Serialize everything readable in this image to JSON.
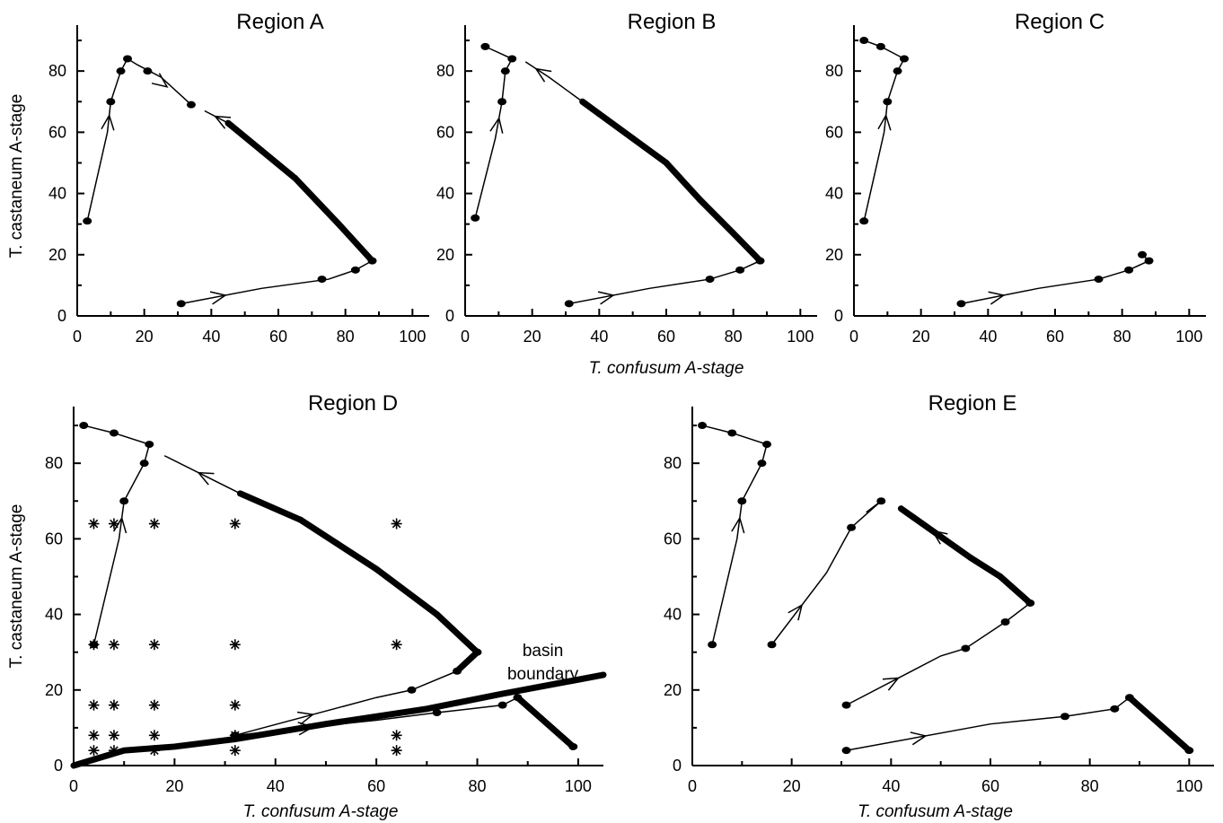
{
  "chart_data": [
    {
      "name": "region-a",
      "type": "line",
      "title": "Region A",
      "xlim": [
        0,
        105
      ],
      "ylim": [
        0,
        95
      ],
      "xticks": [
        0,
        20,
        40,
        60,
        80,
        100
      ],
      "yticks": [
        0,
        20,
        40,
        60,
        80
      ],
      "series": [
        {
          "points": [
            [
              3,
              31
            ],
            [
              9,
              60
            ],
            [
              10,
              70
            ],
            [
              13,
              80
            ],
            [
              15,
              84
            ],
            [
              18,
              82
            ],
            [
              25,
              78
            ],
            [
              34,
              69
            ]
          ],
          "dots": [
            [
              3,
              31
            ],
            [
              10,
              70
            ],
            [
              13,
              80
            ],
            [
              15,
              84
            ],
            [
              21,
              80
            ],
            [
              34,
              69
            ]
          ],
          "arrows": [
            [
              1,
              2
            ],
            [
              5,
              7
            ]
          ]
        },
        {
          "points": [
            [
              31,
              4
            ],
            [
              55,
              9
            ],
            [
              75,
              12
            ],
            [
              83,
              15
            ],
            [
              88,
              18
            ],
            [
              78,
              30
            ],
            [
              65,
              45
            ],
            [
              55,
              54
            ],
            [
              45,
              63
            ],
            [
              38,
              67
            ]
          ],
          "dots": [
            [
              31,
              4
            ],
            [
              73,
              12
            ],
            [
              83,
              15
            ],
            [
              88,
              18
            ]
          ],
          "arrows": [
            [
              0,
              1
            ],
            [
              8,
              9
            ]
          ],
          "thick": [
            4,
            5,
            6,
            7
          ]
        }
      ]
    },
    {
      "name": "region-b",
      "type": "line",
      "title": "Region B",
      "xlim": [
        0,
        105
      ],
      "ylim": [
        0,
        95
      ],
      "xticks": [
        0,
        20,
        40,
        60,
        80,
        100
      ],
      "yticks": [
        0,
        20,
        40,
        60,
        80
      ],
      "series": [
        {
          "points": [
            [
              3,
              32
            ],
            [
              9,
              58
            ],
            [
              11,
              70
            ],
            [
              12,
              80
            ],
            [
              14,
              84
            ],
            [
              6,
              88
            ]
          ],
          "dots": [
            [
              3,
              32
            ],
            [
              11,
              70
            ],
            [
              12,
              80
            ],
            [
              14,
              84
            ],
            [
              6,
              88
            ]
          ],
          "arrows": [
            [
              1,
              2
            ]
          ]
        },
        {
          "points": [
            [
              31,
              4
            ],
            [
              55,
              9
            ],
            [
              73,
              12
            ],
            [
              82,
              15
            ],
            [
              88,
              18
            ],
            [
              80,
              27
            ],
            [
              70,
              38
            ],
            [
              60,
              50
            ],
            [
              50,
              58
            ],
            [
              40,
              66
            ],
            [
              35,
              70
            ],
            [
              25,
              78
            ],
            [
              18,
              83
            ]
          ],
          "dots": [
            [
              31,
              4
            ],
            [
              73,
              12
            ],
            [
              82,
              15
            ],
            [
              88,
              18
            ]
          ],
          "arrows": [
            [
              0,
              1
            ],
            [
              11,
              12
            ]
          ],
          "thick": [
            4,
            5,
            6,
            7,
            8,
            9
          ]
        }
      ]
    },
    {
      "name": "region-c",
      "type": "line",
      "title": "Region C",
      "xlim": [
        0,
        105
      ],
      "ylim": [
        0,
        95
      ],
      "xticks": [
        0,
        20,
        40,
        60,
        80,
        100
      ],
      "yticks": [
        0,
        20,
        40,
        60,
        80
      ],
      "series": [
        {
          "points": [
            [
              3,
              31
            ],
            [
              9,
              60
            ],
            [
              10,
              70
            ],
            [
              13,
              80
            ],
            [
              15,
              84
            ],
            [
              8,
              88
            ],
            [
              3,
              90
            ]
          ],
          "dots": [
            [
              3,
              31
            ],
            [
              10,
              70
            ],
            [
              13,
              80
            ],
            [
              15,
              84
            ],
            [
              8,
              88
            ],
            [
              3,
              90
            ]
          ],
          "arrows": [
            [
              1,
              2
            ]
          ]
        },
        {
          "points": [
            [
              32,
              4
            ],
            [
              55,
              9
            ],
            [
              73,
              12
            ],
            [
              82,
              15
            ],
            [
              88,
              18
            ],
            [
              86,
              20
            ]
          ],
          "dots": [
            [
              32,
              4
            ],
            [
              73,
              12
            ],
            [
              82,
              15
            ],
            [
              88,
              18
            ],
            [
              86,
              20
            ]
          ],
          "arrows": [
            [
              0,
              1
            ]
          ]
        }
      ]
    },
    {
      "name": "region-d",
      "type": "line",
      "title": "Region D",
      "xlabel": "T. confusum A-stage",
      "ylabel": "T. castaneum A-stage",
      "annotation": {
        "lines": [
          "basin",
          "boundary"
        ],
        "at": [
          93,
          29
        ]
      },
      "xlim": [
        0,
        105
      ],
      "ylim": [
        0,
        95
      ],
      "xticks": [
        0,
        20,
        40,
        60,
        80,
        100
      ],
      "yticks": [
        0,
        20,
        40,
        60,
        80
      ],
      "series": [
        {
          "points": [
            [
              4,
              32
            ],
            [
              9,
              60
            ],
            [
              10,
              70
            ],
            [
              14,
              80
            ],
            [
              15,
              85
            ],
            [
              8,
              88
            ],
            [
              2,
              90
            ]
          ],
          "dots": [
            [
              4,
              32
            ],
            [
              10,
              70
            ],
            [
              14,
              80
            ],
            [
              15,
              85
            ],
            [
              8,
              88
            ],
            [
              2,
              90
            ]
          ],
          "arrows": [
            [
              1,
              2
            ]
          ]
        },
        {
          "points": [
            [
              32,
              8
            ],
            [
              60,
              18
            ],
            [
              67,
              20
            ],
            [
              76,
              25
            ],
            [
              80,
              30
            ],
            [
              72,
              40
            ],
            [
              60,
              52
            ],
            [
              45,
              65
            ],
            [
              33,
              72
            ],
            [
              18,
              82
            ]
          ],
          "dots": [
            [
              32,
              8
            ],
            [
              67,
              20
            ],
            [
              76,
              25
            ],
            [
              80,
              30
            ]
          ],
          "arrows": [
            [
              0,
              1
            ],
            [
              8,
              9
            ]
          ],
          "thick": [
            3,
            4,
            5,
            6,
            7
          ]
        },
        {
          "points": [
            [
              32,
              8
            ],
            [
              60,
              12
            ],
            [
              72,
              14
            ],
            [
              85,
              16
            ],
            [
              88,
              18
            ],
            [
              99,
              5
            ]
          ],
          "dots": [
            [
              32,
              8
            ],
            [
              72,
              14
            ],
            [
              85,
              16
            ],
            [
              88,
              18
            ],
            [
              99,
              5
            ]
          ],
          "arrows": [
            [
              0,
              1
            ]
          ],
          "thick": [
            4
          ]
        }
      ],
      "boundary": [
        [
          0,
          0
        ],
        [
          10,
          4
        ],
        [
          20,
          5
        ],
        [
          32,
          7
        ],
        [
          50,
          11
        ],
        [
          70,
          15
        ],
        [
          85,
          19
        ],
        [
          105,
          24
        ]
      ],
      "initial_points": [
        [
          4,
          4
        ],
        [
          8,
          4
        ],
        [
          16,
          4
        ],
        [
          32,
          4
        ],
        [
          64,
          4
        ],
        [
          4,
          8
        ],
        [
          8,
          8
        ],
        [
          16,
          8
        ],
        [
          32,
          8
        ],
        [
          64,
          8
        ],
        [
          4,
          16
        ],
        [
          8,
          16
        ],
        [
          16,
          16
        ],
        [
          32,
          16
        ],
        [
          4,
          32
        ],
        [
          8,
          32
        ],
        [
          16,
          32
        ],
        [
          32,
          32
        ],
        [
          64,
          32
        ],
        [
          4,
          64
        ],
        [
          8,
          64
        ],
        [
          16,
          64
        ],
        [
          32,
          64
        ],
        [
          64,
          64
        ]
      ]
    },
    {
      "name": "region-e",
      "type": "line",
      "title": "Region E",
      "xlabel": "T. confusum A-stage",
      "xlim": [
        0,
        105
      ],
      "ylim": [
        0,
        95
      ],
      "xticks": [
        0,
        20,
        40,
        60,
        80,
        100
      ],
      "yticks": [
        0,
        20,
        40,
        60,
        80
      ],
      "series": [
        {
          "points": [
            [
              4,
              32
            ],
            [
              9,
              60
            ],
            [
              10,
              70
            ],
            [
              14,
              80
            ],
            [
              15,
              85
            ],
            [
              8,
              88
            ],
            [
              2,
              90
            ]
          ],
          "dots": [
            [
              4,
              32
            ],
            [
              10,
              70
            ],
            [
              14,
              80
            ],
            [
              15,
              85
            ],
            [
              8,
              88
            ],
            [
              2,
              90
            ]
          ],
          "arrows": [
            [
              1,
              2
            ]
          ]
        },
        {
          "points": [
            [
              16,
              32
            ],
            [
              27,
              51
            ],
            [
              32,
              63
            ],
            [
              38,
              70
            ],
            [
              35,
              67
            ]
          ],
          "dots": [
            [
              16,
              32
            ],
            [
              32,
              63
            ],
            [
              38,
              70
            ]
          ],
          "arrows": [
            [
              0,
              1
            ]
          ]
        },
        {
          "points": [
            [
              31,
              16
            ],
            [
              50,
              29
            ],
            [
              55,
              31
            ],
            [
              63,
              38
            ],
            [
              68,
              43
            ],
            [
              62,
              50
            ],
            [
              56,
              55
            ],
            [
              42,
              68
            ]
          ],
          "dots": [
            [
              31,
              16
            ],
            [
              55,
              31
            ],
            [
              63,
              38
            ],
            [
              68,
              43
            ]
          ],
          "arrows": [
            [
              0,
              1
            ],
            [
              6,
              7
            ]
          ],
          "thick": [
            4,
            5,
            6
          ]
        },
        {
          "points": [
            [
              31,
              4
            ],
            [
              60,
              11
            ],
            [
              75,
              13
            ],
            [
              85,
              15
            ],
            [
              88,
              18
            ],
            [
              100,
              4
            ]
          ],
          "dots": [
            [
              31,
              4
            ],
            [
              75,
              13
            ],
            [
              85,
              15
            ],
            [
              88,
              18
            ],
            [
              100,
              4
            ]
          ],
          "arrows": [
            [
              0,
              1
            ]
          ],
          "thick": [
            4
          ]
        }
      ]
    }
  ],
  "shared_labels": {
    "top_xlabel": "T. confusum A-stage",
    "top_ylabel": "T. castaneum A-stage"
  }
}
